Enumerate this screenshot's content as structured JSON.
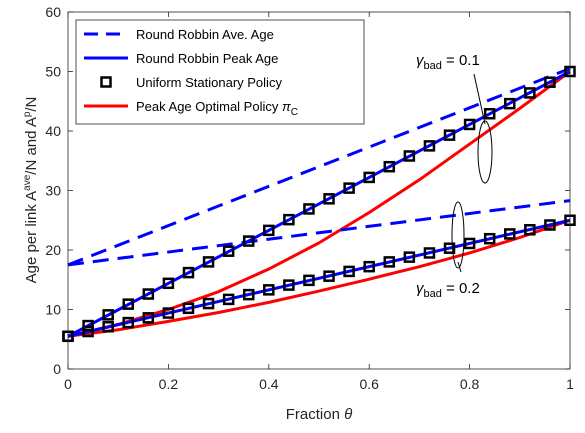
{
  "chart_data": {
    "type": "line",
    "xlabel_text": "Fraction ",
    "xlabel_symbol": "θ",
    "ylabel_prefix": "Age per link A",
    "ylabel_sup1": "ave",
    "ylabel_mid": "/N and A",
    "ylabel_sup2": "p",
    "ylabel_suffix": "/N",
    "xlim": [
      0,
      1
    ],
    "ylim": [
      0,
      60
    ],
    "xticks": [
      0,
      0.2,
      0.4,
      0.6,
      0.8,
      1
    ],
    "xtick_labels": [
      "0",
      "0.2",
      "0.4",
      "0.6",
      "0.8",
      "1"
    ],
    "yticks": [
      0,
      10,
      20,
      30,
      40,
      50,
      60
    ],
    "ytick_labels": [
      "0",
      "10",
      "20",
      "30",
      "40",
      "50",
      "60"
    ],
    "legend_position": "top-left",
    "legend": [
      {
        "label": "Round Robbin Ave. Age",
        "style": "dashed",
        "color": "#0000ff"
      },
      {
        "label": "Round Robbin Peak Age",
        "style": "solid",
        "color": "#0000ff"
      },
      {
        "label": "Uniform Stationary Policy",
        "style": "marker-square",
        "color": "#000000"
      },
      {
        "label": "Peak Age Optimal Policy ",
        "label_symbol": "π",
        "label_sub": "C",
        "style": "solid",
        "color": "#ff0000"
      }
    ],
    "annotations": [
      {
        "greek": "γ",
        "sub": "bad",
        "text": " = 0.1"
      },
      {
        "greek": "γ",
        "sub": "bad",
        "text": " = 0.2"
      }
    ],
    "series": [
      {
        "group": "gamma_0.1",
        "kind": "rr-ave",
        "color": "#0000ff",
        "style": "dashed",
        "x": [
          0,
          1
        ],
        "y": [
          17.5,
          50.5
        ]
      },
      {
        "group": "gamma_0.1",
        "kind": "rr-peak",
        "color": "#0000ff",
        "style": "solid",
        "x": [
          0,
          1
        ],
        "y": [
          5.5,
          50
        ]
      },
      {
        "group": "gamma_0.1",
        "kind": "uniform",
        "color": "#000000",
        "style": "marker",
        "x": [
          0,
          0.04,
          0.08,
          0.12,
          0.16,
          0.2,
          0.24,
          0.28,
          0.32,
          0.36,
          0.4,
          0.44,
          0.48,
          0.52,
          0.56,
          0.6,
          0.64,
          0.68,
          0.72,
          0.76,
          0.8,
          0.84,
          0.88,
          0.92,
          0.96,
          1
        ],
        "y": [
          5.5,
          7.3,
          9.1,
          10.9,
          12.6,
          14.4,
          16.2,
          18.0,
          19.8,
          21.5,
          23.3,
          25.1,
          26.9,
          28.6,
          30.4,
          32.2,
          34.0,
          35.8,
          37.5,
          39.3,
          41.1,
          42.9,
          44.6,
          46.4,
          48.2,
          50.0
        ]
      },
      {
        "group": "gamma_0.1",
        "kind": "optimal",
        "color": "#ff0000",
        "style": "solid",
        "x": [
          0,
          0.1,
          0.2,
          0.3,
          0.4,
          0.5,
          0.6,
          0.7,
          0.8,
          0.9,
          1
        ],
        "y": [
          5.5,
          7.5,
          10.0,
          13.0,
          16.8,
          21.2,
          26.3,
          31.8,
          37.8,
          43.8,
          50.0
        ]
      },
      {
        "group": "gamma_0.2",
        "kind": "rr-ave",
        "color": "#0000ff",
        "style": "dashed",
        "x": [
          0,
          1
        ],
        "y": [
          17.5,
          28.3
        ]
      },
      {
        "group": "gamma_0.2",
        "kind": "rr-peak",
        "color": "#0000ff",
        "style": "solid",
        "x": [
          0,
          1
        ],
        "y": [
          5.5,
          25
        ]
      },
      {
        "group": "gamma_0.2",
        "kind": "uniform",
        "color": "#000000",
        "style": "marker",
        "x": [
          0,
          0.04,
          0.08,
          0.12,
          0.16,
          0.2,
          0.24,
          0.28,
          0.32,
          0.36,
          0.4,
          0.44,
          0.48,
          0.52,
          0.56,
          0.6,
          0.64,
          0.68,
          0.72,
          0.76,
          0.8,
          0.84,
          0.88,
          0.92,
          0.96,
          1
        ],
        "y": [
          5.5,
          6.3,
          7.1,
          7.8,
          8.6,
          9.4,
          10.2,
          11.0,
          11.7,
          12.5,
          13.3,
          14.1,
          14.9,
          15.6,
          16.4,
          17.2,
          18.0,
          18.8,
          19.5,
          20.3,
          21.1,
          21.9,
          22.7,
          23.4,
          24.2,
          25.0
        ]
      },
      {
        "group": "gamma_0.2",
        "kind": "optimal",
        "color": "#ff0000",
        "style": "solid",
        "x": [
          0,
          0.1,
          0.2,
          0.3,
          0.4,
          0.5,
          0.6,
          0.7,
          0.8,
          0.9,
          1
        ],
        "y": [
          5.5,
          6.6,
          8.0,
          9.5,
          11.2,
          13.1,
          15.1,
          17.2,
          19.5,
          22.1,
          25.0
        ]
      }
    ]
  }
}
